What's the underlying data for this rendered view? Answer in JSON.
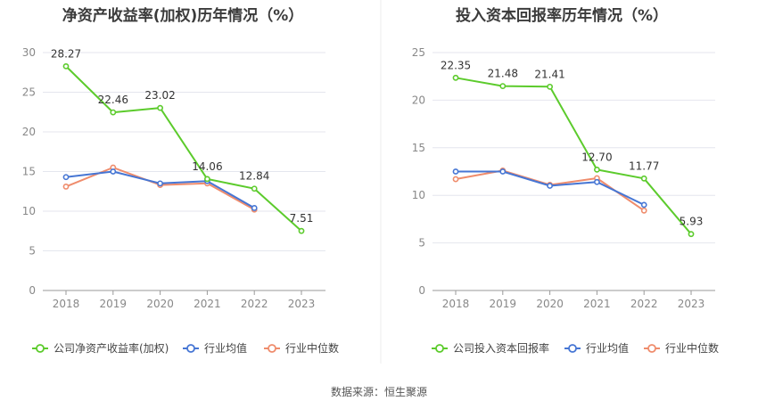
{
  "source_label": "数据来源：恒生聚源",
  "colors": {
    "company": "#5ccb2c",
    "avg": "#4676d4",
    "median": "#ef8c6c",
    "grid": "#e4e6ee",
    "axis": "#999999",
    "tick_text": "#888888",
    "label_text": "#333333",
    "divider": "#eeeeee"
  },
  "chart_data": [
    {
      "type": "line",
      "title": "净资产收益率(加权)历年情况（%）",
      "categories": [
        "2018",
        "2019",
        "2020",
        "2021",
        "2022",
        "2023"
      ],
      "ylim": [
        0,
        30
      ],
      "yticks": [
        "0",
        "5",
        "10",
        "15",
        "20",
        "25",
        "30"
      ],
      "grid": true,
      "legend_position": "bottom",
      "series": [
        {
          "name": "公司净资产收益率(加权)",
          "key": "company",
          "values": [
            28.27,
            22.46,
            23.02,
            14.06,
            12.84,
            7.51
          ],
          "labels": [
            "28.27",
            "22.46",
            "23.02",
            "14.06",
            "12.84",
            "7.51"
          ]
        },
        {
          "name": "行业均值",
          "key": "avg",
          "values": [
            14.3,
            15.0,
            13.5,
            13.8,
            10.4,
            null
          ]
        },
        {
          "name": "行业中位数",
          "key": "median",
          "values": [
            13.1,
            15.5,
            13.3,
            13.5,
            10.2,
            null
          ]
        }
      ]
    },
    {
      "type": "line",
      "title": "投入资本回报率历年情况（%）",
      "categories": [
        "2018",
        "2019",
        "2020",
        "2021",
        "2022",
        "2023"
      ],
      "ylim": [
        0,
        25
      ],
      "yticks": [
        "0",
        "5",
        "10",
        "15",
        "20",
        "25"
      ],
      "grid": true,
      "legend_position": "bottom",
      "series": [
        {
          "name": "公司投入资本回报率",
          "key": "company",
          "values": [
            22.35,
            21.48,
            21.41,
            12.7,
            11.77,
            5.93
          ],
          "labels": [
            "22.35",
            "21.48",
            "21.41",
            "12.70",
            "11.77",
            "5.93"
          ]
        },
        {
          "name": "行业均值",
          "key": "avg",
          "values": [
            12.5,
            12.5,
            11.0,
            11.4,
            9.0,
            null
          ]
        },
        {
          "name": "行业中位数",
          "key": "median",
          "values": [
            11.7,
            12.6,
            11.1,
            11.8,
            8.4,
            null
          ]
        }
      ]
    }
  ]
}
